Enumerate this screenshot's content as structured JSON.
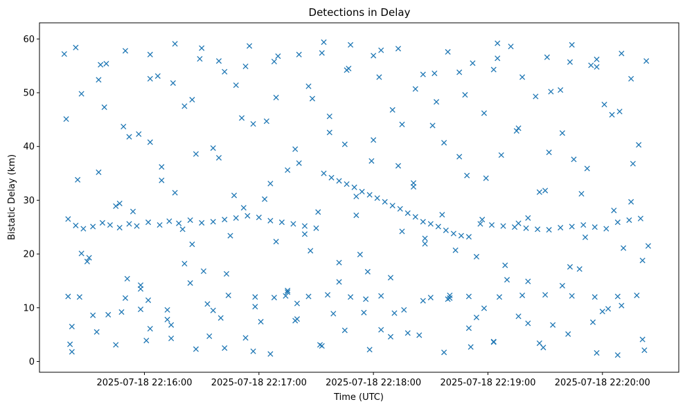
{
  "chart_data": {
    "type": "scatter",
    "title": "Detections in Delay",
    "xlabel": "Time (UTC)",
    "ylabel": "Bistatic Delay (km)",
    "x_ticks": [
      "2025-07-18 22:16:00",
      "2025-07-18 22:17:00",
      "2025-07-18 22:18:00",
      "2025-07-18 22:19:00",
      "2025-07-18 22:20:00"
    ],
    "y_ticks": [
      "0",
      "10",
      "20",
      "30",
      "40",
      "50",
      "60"
    ],
    "xlim": [
      "2025-07-18 22:15:05",
      "2025-07-18 22:20:40"
    ],
    "ylim": [
      -2,
      63
    ],
    "marker": "x",
    "color": "#1f77b4",
    "series": [
      {
        "x": [
          "2025-07-18 22:15:20",
          "2025-07-18 22:15:24",
          "2025-07-18 22:15:28",
          "2025-07-18 22:15:33",
          "2025-07-18 22:15:38",
          "2025-07-18 22:15:42",
          "2025-07-18 22:15:47",
          "2025-07-18 22:15:52",
          "2025-07-18 22:15:56",
          "2025-07-18 22:16:02",
          "2025-07-18 22:16:08",
          "2025-07-18 22:16:13",
          "2025-07-18 22:16:18",
          "2025-07-18 22:16:24",
          "2025-07-18 22:16:30",
          "2025-07-18 22:16:36",
          "2025-07-18 22:16:42",
          "2025-07-18 22:16:48",
          "2025-07-18 22:16:54",
          "2025-07-18 22:17:00",
          "2025-07-18 22:17:06",
          "2025-07-18 22:17:12",
          "2025-07-18 22:17:18",
          "2025-07-18 22:17:24",
          "2025-07-18 22:17:30",
          "2025-07-18 22:17:34",
          "2025-07-18 22:17:38",
          "2025-07-18 22:17:42",
          "2025-07-18 22:17:46",
          "2025-07-18 22:17:50",
          "2025-07-18 22:17:54",
          "2025-07-18 22:17:58",
          "2025-07-18 22:18:02",
          "2025-07-18 22:18:06",
          "2025-07-18 22:18:10",
          "2025-07-18 22:18:14",
          "2025-07-18 22:18:18",
          "2025-07-18 22:18:22",
          "2025-07-18 22:18:26",
          "2025-07-18 22:18:30",
          "2025-07-18 22:18:34",
          "2025-07-18 22:18:38",
          "2025-07-18 22:18:42",
          "2025-07-18 22:18:46",
          "2025-07-18 22:18:50",
          "2025-07-18 22:18:56",
          "2025-07-18 22:19:02",
          "2025-07-18 22:19:08",
          "2025-07-18 22:19:14",
          "2025-07-18 22:19:20",
          "2025-07-18 22:19:26",
          "2025-07-18 22:19:32",
          "2025-07-18 22:19:38",
          "2025-07-18 22:19:44",
          "2025-07-18 22:19:50",
          "2025-07-18 22:19:56",
          "2025-07-18 22:20:02",
          "2025-07-18 22:20:08",
          "2025-07-18 22:20:14",
          "2025-07-18 22:20:20",
          "2025-07-18 22:15:20",
          "2025-07-18 22:15:26",
          "2025-07-18 22:15:50",
          "2025-07-18 22:15:58",
          "2025-07-18 22:16:02",
          "2025-07-18 22:16:12",
          "2025-07-18 22:16:24",
          "2025-07-18 22:16:36",
          "2025-07-18 22:16:44",
          "2025-07-18 22:16:58",
          "2025-07-18 22:17:08",
          "2025-07-18 22:17:14",
          "2025-07-18 22:17:20",
          "2025-07-18 22:17:26",
          "2025-07-18 22:17:36",
          "2025-07-18 22:17:48",
          "2025-07-18 22:17:56",
          "2025-07-18 22:18:04",
          "2025-07-18 22:18:16",
          "2025-07-18 22:18:30",
          "2025-07-18 22:18:40",
          "2025-07-18 22:18:50",
          "2025-07-18 22:18:58",
          "2025-07-18 22:19:06",
          "2025-07-18 22:19:18",
          "2025-07-18 22:19:30",
          "2025-07-18 22:19:44",
          "2025-07-18 22:19:56",
          "2025-07-18 22:20:08",
          "2025-07-18 22:20:18",
          "2025-07-18 22:15:18",
          "2025-07-18 22:15:22",
          "2025-07-18 22:15:27",
          "2025-07-18 22:15:31",
          "2025-07-18 22:15:36",
          "2025-07-18 22:15:40",
          "2025-07-18 22:15:45",
          "2025-07-18 22:15:49",
          "2025-07-18 22:15:54",
          "2025-07-18 22:15:58",
          "2025-07-18 22:16:03",
          "2025-07-18 22:16:07",
          "2025-07-18 22:16:12",
          "2025-07-18 22:16:16",
          "2025-07-18 22:16:21",
          "2025-07-18 22:16:25",
          "2025-07-18 22:16:30",
          "2025-07-18 22:16:34",
          "2025-07-18 22:16:39",
          "2025-07-18 22:16:43",
          "2025-07-18 22:16:48",
          "2025-07-18 22:16:52",
          "2025-07-18 22:16:57",
          "2025-07-18 22:17:01",
          "2025-07-18 22:17:06",
          "2025-07-18 22:17:10",
          "2025-07-18 22:17:15",
          "2025-07-18 22:17:19",
          "2025-07-18 22:17:24",
          "2025-07-18 22:17:28",
          "2025-07-18 22:17:33",
          "2025-07-18 22:17:37",
          "2025-07-18 22:17:42",
          "2025-07-18 22:17:46",
          "2025-07-18 22:17:51",
          "2025-07-18 22:17:55",
          "2025-07-18 22:18:00",
          "2025-07-18 22:18:04",
          "2025-07-18 22:18:09",
          "2025-07-18 22:18:13",
          "2025-07-18 22:18:18",
          "2025-07-18 22:18:22",
          "2025-07-18 22:18:27",
          "2025-07-18 22:18:31",
          "2025-07-18 22:18:36",
          "2025-07-18 22:18:40",
          "2025-07-18 22:18:45",
          "2025-07-18 22:18:49",
          "2025-07-18 22:18:54",
          "2025-07-18 22:18:58",
          "2025-07-18 22:19:03",
          "2025-07-18 22:19:07",
          "2025-07-18 22:19:12",
          "2025-07-18 22:19:16",
          "2025-07-18 22:19:21",
          "2025-07-18 22:19:25",
          "2025-07-18 22:19:30",
          "2025-07-18 22:19:34",
          "2025-07-18 22:19:39",
          "2025-07-18 22:19:43",
          "2025-07-18 22:19:48",
          "2025-07-18 22:19:52",
          "2025-07-18 22:19:57",
          "2025-07-18 22:20:01",
          "2025-07-18 22:20:06",
          "2025-07-18 22:20:10",
          "2025-07-18 22:20:15",
          "2025-07-18 22:20:19",
          "2025-07-18 22:20:24",
          "2025-07-18 22:15:19",
          "2025-07-18 22:15:25",
          "2025-07-18 22:15:30",
          "2025-07-18 22:15:36",
          "2025-07-18 22:15:41",
          "2025-07-18 22:15:47",
          "2025-07-18 22:15:52",
          "2025-07-18 22:15:58",
          "2025-07-18 22:16:03",
          "2025-07-18 22:16:09",
          "2025-07-18 22:16:14",
          "2025-07-18 22:16:20",
          "2025-07-18 22:16:25",
          "2025-07-18 22:16:31",
          "2025-07-18 22:16:36",
          "2025-07-18 22:16:42",
          "2025-07-18 22:16:47",
          "2025-07-18 22:16:53",
          "2025-07-18 22:16:58",
          "2025-07-18 22:17:04",
          "2025-07-18 22:17:09",
          "2025-07-18 22:17:15",
          "2025-07-18 22:17:20",
          "2025-07-18 22:17:26",
          "2025-07-18 22:17:31",
          "2025-07-18 22:17:37",
          "2025-07-18 22:17:42",
          "2025-07-18 22:17:48",
          "2025-07-18 22:17:53",
          "2025-07-18 22:17:59",
          "2025-07-18 22:18:04",
          "2025-07-18 22:18:10",
          "2025-07-18 22:18:15",
          "2025-07-18 22:18:21",
          "2025-07-18 22:18:26",
          "2025-07-18 22:18:32",
          "2025-07-18 22:18:37",
          "2025-07-18 22:18:43",
          "2025-07-18 22:18:48",
          "2025-07-18 22:18:54",
          "2025-07-18 22:18:59",
          "2025-07-18 22:19:05",
          "2025-07-18 22:19:10",
          "2025-07-18 22:19:16",
          "2025-07-18 22:19:21",
          "2025-07-18 22:19:27",
          "2025-07-18 22:19:32",
          "2025-07-18 22:19:38",
          "2025-07-18 22:19:43",
          "2025-07-18 22:19:49",
          "2025-07-18 22:19:54",
          "2025-07-18 22:20:00",
          "2025-07-18 22:20:05",
          "2025-07-18 22:20:11",
          "2025-07-18 22:20:16",
          "2025-07-18 22:20:22",
          "2025-07-18 22:15:21",
          "2025-07-18 22:15:27",
          "2025-07-18 22:15:33",
          "2025-07-18 22:15:39",
          "2025-07-18 22:15:45",
          "2025-07-18 22:15:51",
          "2025-07-18 22:15:57",
          "2025-07-18 22:16:03",
          "2025-07-18 22:16:09",
          "2025-07-18 22:16:15",
          "2025-07-18 22:16:21",
          "2025-07-18 22:16:27",
          "2025-07-18 22:16:33",
          "2025-07-18 22:16:39",
          "2025-07-18 22:16:45",
          "2025-07-18 22:16:51",
          "2025-07-18 22:16:57",
          "2025-07-18 22:17:03",
          "2025-07-18 22:17:09",
          "2025-07-18 22:17:15",
          "2025-07-18 22:17:21",
          "2025-07-18 22:17:27",
          "2025-07-18 22:17:33",
          "2025-07-18 22:17:39",
          "2025-07-18 22:17:45",
          "2025-07-18 22:17:51",
          "2025-07-18 22:17:57",
          "2025-07-18 22:18:03",
          "2025-07-18 22:18:09",
          "2025-07-18 22:18:15",
          "2025-07-18 22:18:21",
          "2025-07-18 22:18:27",
          "2025-07-18 22:18:33",
          "2025-07-18 22:18:39",
          "2025-07-18 22:18:45",
          "2025-07-18 22:18:51",
          "2025-07-18 22:18:57",
          "2025-07-18 22:19:03",
          "2025-07-18 22:19:09",
          "2025-07-18 22:19:15",
          "2025-07-18 22:19:21",
          "2025-07-18 22:19:27",
          "2025-07-18 22:19:33",
          "2025-07-18 22:19:39",
          "2025-07-18 22:19:45",
          "2025-07-18 22:19:51",
          "2025-07-18 22:19:57",
          "2025-07-18 22:20:03",
          "2025-07-18 22:20:09",
          "2025-07-18 22:20:15",
          "2025-07-18 22:20:21",
          "2025-07-18 22:15:22",
          "2025-07-18 22:15:35",
          "2025-07-18 22:15:48",
          "2025-07-18 22:16:01",
          "2025-07-18 22:16:14",
          "2025-07-18 22:16:27",
          "2025-07-18 22:16:40",
          "2025-07-18 22:16:53",
          "2025-07-18 22:17:06",
          "2025-07-18 22:17:19",
          "2025-07-18 22:17:32",
          "2025-07-18 22:17:45",
          "2025-07-18 22:17:58",
          "2025-07-18 22:18:11",
          "2025-07-18 22:18:24",
          "2025-07-18 22:18:37",
          "2025-07-18 22:18:50",
          "2025-07-18 22:19:03",
          "2025-07-18 22:19:16",
          "2025-07-18 22:19:29",
          "2025-07-18 22:19:42",
          "2025-07-18 22:19:55",
          "2025-07-18 22:20:08",
          "2025-07-18 22:20:21",
          "2025-07-18 22:15:24",
          "2025-07-18 22:15:37",
          "2025-07-18 22:15:50",
          "2025-07-18 22:16:03",
          "2025-07-18 22:16:16",
          "2025-07-18 22:16:29",
          "2025-07-18 22:16:42",
          "2025-07-18 22:16:55",
          "2025-07-18 22:17:08",
          "2025-07-18 22:17:21",
          "2025-07-18 22:17:34",
          "2025-07-18 22:17:47",
          "2025-07-18 22:18:00",
          "2025-07-18 22:18:13",
          "2025-07-18 22:18:26",
          "2025-07-18 22:18:39",
          "2025-07-18 22:18:52",
          "2025-07-18 22:19:05",
          "2025-07-18 22:19:18",
          "2025-07-18 22:19:31",
          "2025-07-18 22:19:44",
          "2025-07-18 22:19:57",
          "2025-07-18 22:20:10",
          "2025-07-18 22:20:23"
        ],
        "y": [
          26.5,
          25.3,
          24.7,
          25.1,
          25.8,
          25.4,
          24.9,
          25.6,
          25.2,
          25.9,
          25.4,
          26.1,
          25.7,
          26.3,
          25.8,
          26.0,
          26.4,
          26.7,
          27.1,
          26.8,
          26.2,
          25.9,
          25.6,
          25.2,
          24.8,
          35.0,
          34.2,
          33.6,
          33.0,
          32.4,
          31.6,
          31.0,
          30.4,
          29.7,
          29.0,
          28.4,
          27.6,
          26.9,
          26.0,
          25.6,
          25.1,
          24.4,
          23.8,
          23.4,
          23.2,
          25.6,
          25.4,
          25.2,
          25.0,
          24.8,
          24.6,
          24.5,
          24.9,
          25.1,
          25.4,
          25.0,
          24.7,
          25.9,
          26.3,
          26.6,
          12.1,
          12.0,
          11.8,
          9.7,
          11.4,
          7.8,
          14.6,
          9.5,
          12.3,
          12.0,
          11.9,
          12.2,
          10.8,
          12.1,
          12.4,
          12.0,
          11.6,
          12.2,
          9.6,
          11.9,
          12.3,
          12.1,
          9.9,
          12.0,
          12.3,
          12.4,
          12.2,
          12.0,
          12.1,
          12.3,
          57.2,
          6.5,
          49.8,
          19.3,
          35.2,
          55.4,
          3.1,
          43.7,
          27.9,
          14.2,
          40.8,
          53.1,
          9.6,
          31.4,
          47.5,
          21.8,
          58.3,
          4.7,
          37.9,
          16.3,
          51.4,
          28.6,
          44.2,
          7.4,
          33.1,
          56.8,
          12.9,
          39.5,
          23.7,
          48.9,
          2.9,
          45.6,
          18.4,
          54.2,
          30.7,
          9.1,
          41.2,
          57.9,
          15.6,
          36.4,
          5.3,
          50.7,
          22.9,
          43.9,
          27.3,
          11.8,
          53.8,
          34.6,
          19.5,
          46.2,
          3.7,
          38.4,
          58.6,
          25.7,
          14.9,
          49.3,
          31.8,
          6.8,
          42.5,
          55.7,
          17.2,
          35.9,
          1.6,
          47.8,
          28.1,
          10.4,
          52.6,
          40.3,
          21.5,
          45.1,
          33.8,
          18.6,
          52.4,
          8.7,
          29.4,
          41.8,
          13.5,
          57.1,
          36.2,
          4.3,
          24.6,
          48.7,
          16.8,
          39.7,
          2.5,
          30.9,
          54.9,
          10.2,
          44.7,
          22.3,
          35.6,
          7.9,
          51.2,
          27.8,
          42.6,
          14.8,
          58.9,
          19.9,
          37.3,
          5.9,
          46.8,
          24.2,
          32.5,
          11.3,
          53.6,
          40.7,
          20.7,
          49.6,
          8.2,
          34.1,
          56.4,
          15.2,
          43.4,
          26.7,
          3.4,
          38.9,
          50.5,
          17.6,
          31.2,
          55.1,
          9.3,
          45.9,
          21.1,
          36.8,
          2.1,
          3.2,
          20.1,
          8.6,
          47.3,
          28.9,
          15.4,
          42.3,
          6.1,
          33.7,
          51.8,
          18.2,
          38.6,
          10.7,
          55.9,
          23.4,
          45.3,
          1.9,
          30.2,
          49.1,
          13.2,
          36.9,
          20.6,
          57.4,
          8.9,
          40.4,
          27.2,
          16.7,
          52.9,
          4.6,
          44.1,
          33.2,
          21.9,
          48.3,
          11.6,
          38.1,
          2.7,
          26.4,
          54.3,
          17.9,
          42.9,
          7.1,
          31.5,
          50.2,
          14.1,
          37.6,
          23.1,
          56.2,
          9.8,
          46.5,
          29.7,
          18.8,
          1.8,
          5.5,
          9.2,
          3.9,
          6.8,
          2.3,
          8.1,
          4.4,
          1.4,
          7.6,
          3.1,
          5.8,
          2.2,
          9.0,
          4.9,
          1.7,
          6.2,
          3.6,
          8.4,
          2.6,
          5.1,
          7.3,
          1.2,
          4.1,
          58.4,
          55.2,
          57.8,
          52.6,
          59.1,
          56.3,
          53.9,
          58.7,
          55.8,
          57.1,
          59.4,
          54.5,
          56.9,
          58.2,
          53.4,
          57.6,
          55.5,
          59.2,
          52.9,
          56.6,
          58.9,
          54.8,
          57.3,
          55.9
        ]
      }
    ]
  }
}
